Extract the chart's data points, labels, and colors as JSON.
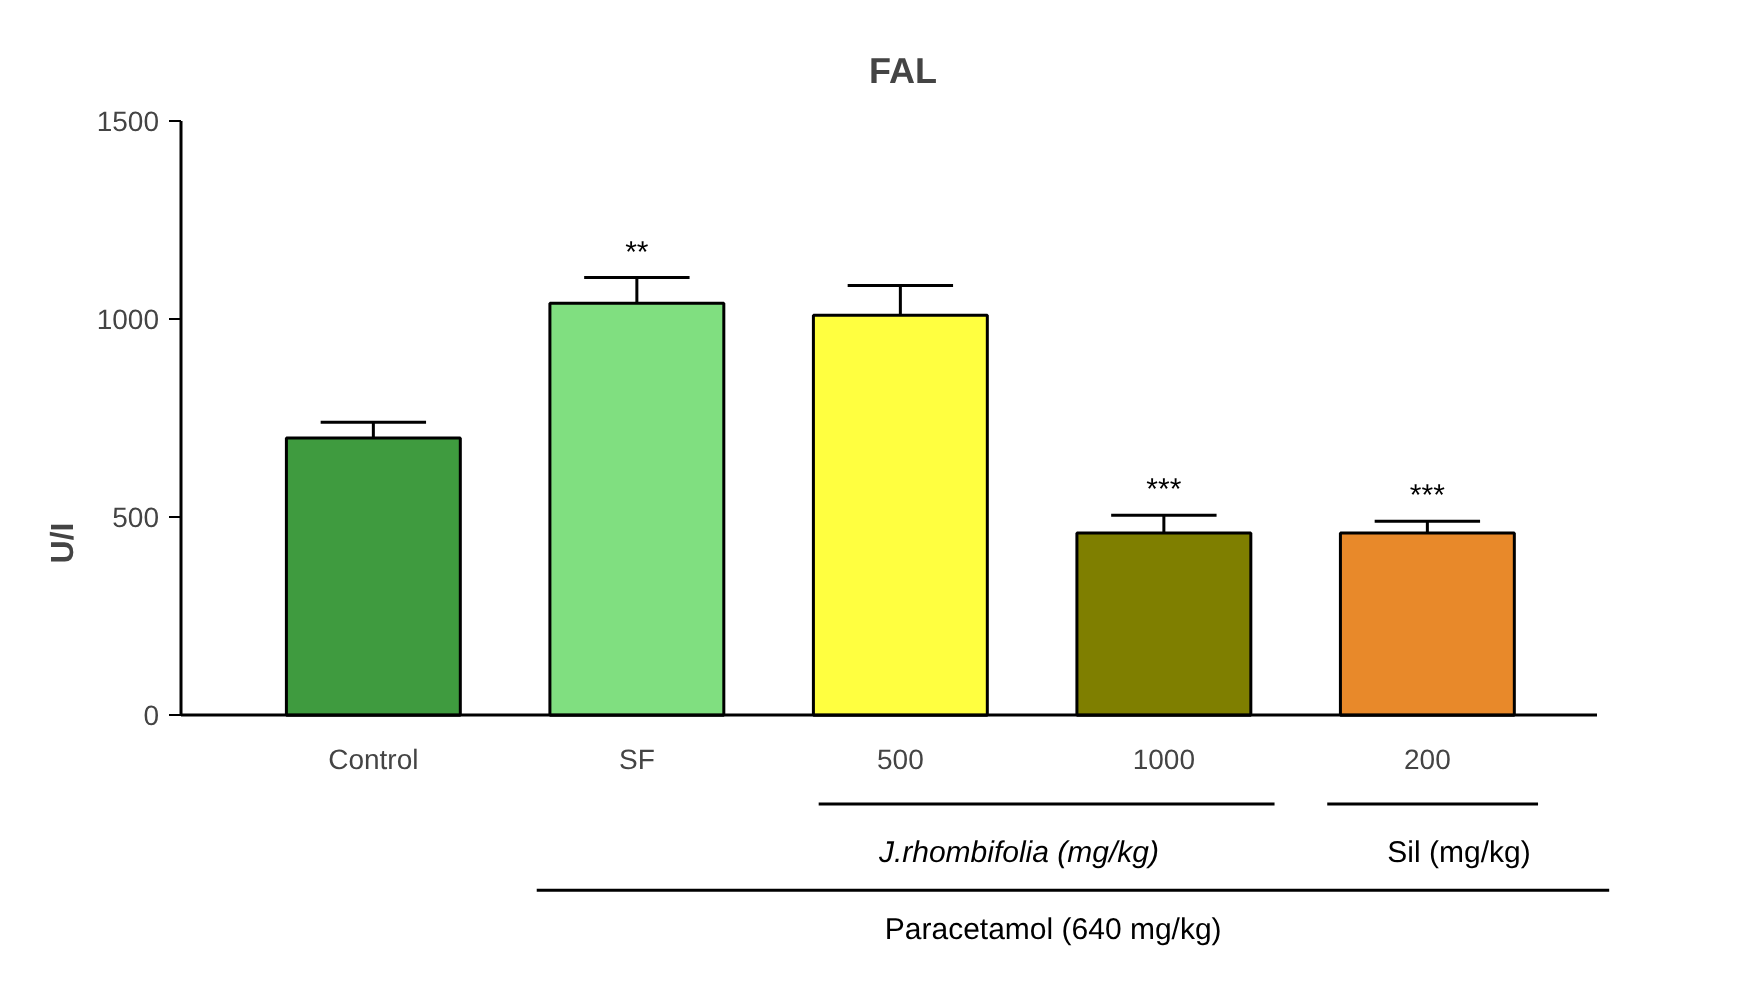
{
  "chart_data": {
    "type": "bar",
    "title": "FAL",
    "ylabel": "U/I",
    "categories": [
      "Control",
      "SF",
      "500",
      "1000",
      "200"
    ],
    "values": [
      700,
      1040,
      1010,
      460,
      460
    ],
    "errors": [
      [
        700,
        740
      ],
      [
        1040,
        1105
      ],
      [
        1010,
        1085
      ],
      [
        460,
        505
      ],
      [
        460,
        490
      ]
    ],
    "colors": [
      "#3f9b3f",
      "#80df80",
      "#ffff40",
      "#7f7f00",
      "#e8892a"
    ],
    "ylim": [
      0,
      1500
    ],
    "yticks": [
      0,
      500,
      1000,
      1500
    ],
    "grid": false,
    "annotations": [
      {
        "text": "**",
        "x": "SF",
        "y": 1105
      },
      {
        "text": "***",
        "x": "1000",
        "y": 505
      },
      {
        "text": "***",
        "x": "200",
        "y": 490
      },
      "J.rhombifolia (mg/kg)",
      "Sil (mg/kg)",
      "Paracetamol (640 mg/kg)"
    ]
  }
}
